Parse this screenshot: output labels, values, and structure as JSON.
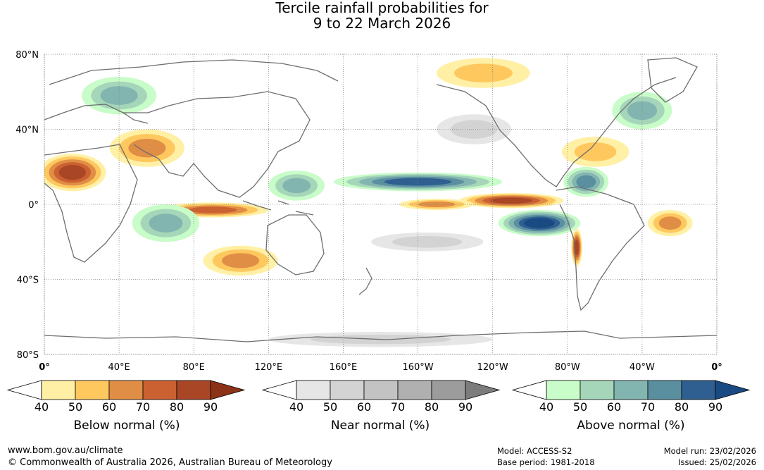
{
  "title": {
    "line1": "Tercile rainfall probabilities for",
    "line2": "9 to 22 March 2026"
  },
  "map": {
    "lat_labels": [
      "80°N",
      "40°N",
      "0°",
      "40°S",
      "80°S"
    ],
    "lat_values": [
      80,
      40,
      0,
      -40,
      -80
    ],
    "lon_labels": [
      "0°",
      "40°E",
      "80°E",
      "120°E",
      "160°E",
      "160°W",
      "120°W",
      "80°W",
      "40°W",
      "0°"
    ],
    "lon_values": [
      0,
      40,
      80,
      120,
      160,
      200,
      240,
      280,
      320,
      360
    ],
    "extent": {
      "lon": [
        0,
        360
      ],
      "lat": [
        -80,
        80
      ]
    },
    "regions": [
      {
        "category": "below",
        "level": 80,
        "lon": 15,
        "lat": 17,
        "rlon": 18,
        "rlat": 10
      },
      {
        "category": "below",
        "level": 60,
        "lon": 55,
        "lat": 30,
        "rlon": 20,
        "rlat": 10
      },
      {
        "category": "below",
        "level": 70,
        "lon": 90,
        "lat": -3,
        "rlon": 30,
        "rlat": 4
      },
      {
        "category": "below",
        "level": 60,
        "lon": 105,
        "lat": -30,
        "rlon": 20,
        "rlat": 8
      },
      {
        "category": "below",
        "level": 80,
        "lon": 250,
        "lat": 2,
        "rlon": 28,
        "rlat": 4
      },
      {
        "category": "below",
        "level": 60,
        "lon": 210,
        "lat": 0,
        "rlon": 20,
        "rlat": 3
      },
      {
        "category": "below",
        "level": 60,
        "lon": 335,
        "lat": -10,
        "rlon": 12,
        "rlat": 7
      },
      {
        "category": "below",
        "level": 50,
        "lon": 295,
        "lat": 28,
        "rlon": 18,
        "rlat": 8
      },
      {
        "category": "below",
        "level": 50,
        "lon": 235,
        "lat": 70,
        "rlon": 25,
        "rlat": 8
      },
      {
        "category": "below",
        "level": 80,
        "lon": 285,
        "lat": -23,
        "rlon": 3,
        "rlat": 10
      },
      {
        "category": "above",
        "level": 80,
        "lon": 200,
        "lat": 12,
        "rlon": 45,
        "rlat": 5
      },
      {
        "category": "above",
        "level": 90,
        "lon": 265,
        "lat": -10,
        "rlon": 22,
        "rlat": 7
      },
      {
        "category": "above",
        "level": 70,
        "lon": 290,
        "lat": 12,
        "rlon": 12,
        "rlat": 8
      },
      {
        "category": "above",
        "level": 60,
        "lon": 65,
        "lat": -10,
        "rlon": 18,
        "rlat": 10
      },
      {
        "category": "above",
        "level": 60,
        "lon": 40,
        "lat": 58,
        "rlon": 20,
        "rlat": 10
      },
      {
        "category": "above",
        "level": 60,
        "lon": 320,
        "lat": 50,
        "rlon": 16,
        "rlat": 10
      },
      {
        "category": "above",
        "level": 60,
        "lon": 135,
        "lat": 10,
        "rlon": 15,
        "rlat": 8
      },
      {
        "category": "near",
        "level": 50,
        "lon": 205,
        "lat": -20,
        "rlon": 30,
        "rlat": 5
      },
      {
        "category": "near",
        "level": 50,
        "lon": 180,
        "lat": -72,
        "rlon": 60,
        "rlat": 4
      },
      {
        "category": "near",
        "level": 50,
        "lon": 230,
        "lat": 40,
        "rlon": 20,
        "rlat": 8
      }
    ]
  },
  "legend": {
    "ticks": [
      "40",
      "50",
      "60",
      "70",
      "80",
      "90"
    ],
    "below": {
      "label": "Below normal (%)",
      "colors": [
        "#fff0a5",
        "#fec85f",
        "#e08e45",
        "#cb6131",
        "#a94626",
        "#8b3217"
      ]
    },
    "near": {
      "label": "Near normal (%)",
      "colors": [
        "#e6e6e6",
        "#d3d3d3",
        "#c3c3c3",
        "#b0b0b0",
        "#9c9c9c",
        "#7c7c7c"
      ]
    },
    "above": {
      "label": "Above normal (%)",
      "colors": [
        "#c8fcc8",
        "#a5d6b9",
        "#82b4b0",
        "#5a8fa0",
        "#2f5f90",
        "#1a4a82"
      ]
    }
  },
  "footer": {
    "website": "www.bom.gov.au/climate",
    "copyright": "© Commonwealth of Australia 2026, Australian Bureau of Meteorology",
    "model": "Model: ACCESS-S2",
    "base_period": "Base period: 1981-2018",
    "model_run": "Model run: 23/02/2026",
    "issued": "Issued: 25/02/2026"
  }
}
